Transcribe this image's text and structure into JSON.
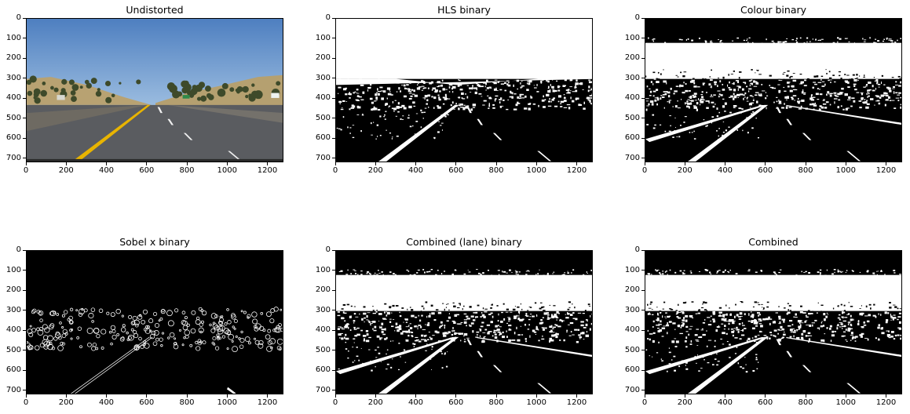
{
  "figure": {
    "panels": [
      {
        "title": "Undistorted",
        "kind": "road-photo",
        "x_ticks": [
          "0",
          "200",
          "400",
          "600",
          "800",
          "1000",
          "1200"
        ],
        "y_ticks": [
          "0",
          "100",
          "200",
          "300",
          "400",
          "500",
          "600",
          "700"
        ]
      },
      {
        "title": "HLS binary",
        "kind": "hls",
        "x_ticks": [
          "0",
          "200",
          "400",
          "600",
          "800",
          "1000",
          "1200"
        ],
        "y_ticks": [
          "0",
          "100",
          "200",
          "300",
          "400",
          "500",
          "600",
          "700"
        ]
      },
      {
        "title": "Colour binary",
        "kind": "colour",
        "x_ticks": [
          "0",
          "200",
          "400",
          "600",
          "800",
          "1000",
          "1200"
        ],
        "y_ticks": [
          "0",
          "100",
          "200",
          "300",
          "400",
          "500",
          "600",
          "700"
        ]
      },
      {
        "title": "Sobel x binary",
        "kind": "sobel",
        "x_ticks": [
          "0",
          "200",
          "400",
          "600",
          "800",
          "1000",
          "1200"
        ],
        "y_ticks": [
          "0",
          "100",
          "200",
          "300",
          "400",
          "500",
          "600",
          "700"
        ]
      },
      {
        "title": "Combined (lane) binary",
        "kind": "combined-lane",
        "x_ticks": [
          "0",
          "200",
          "400",
          "600",
          "800",
          "1000",
          "1200"
        ],
        "y_ticks": [
          "0",
          "100",
          "200",
          "300",
          "400",
          "500",
          "600",
          "700"
        ]
      },
      {
        "title": "Combined",
        "kind": "combined",
        "x_ticks": [
          "0",
          "200",
          "400",
          "600",
          "800",
          "1000",
          "1200"
        ],
        "y_ticks": [
          "0",
          "100",
          "200",
          "300",
          "400",
          "500",
          "600",
          "700"
        ]
      }
    ]
  }
}
